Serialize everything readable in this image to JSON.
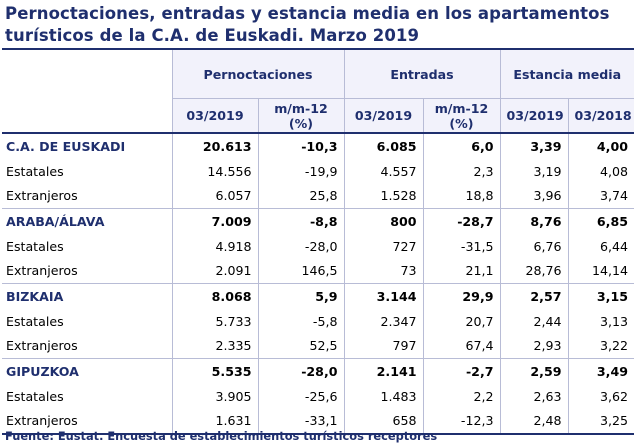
{
  "title": {
    "line1": "Pernoctaciones, entradas y estancia media en los apartamentos",
    "line2": "turísticos de la C.A. de Euskadi. Marzo 2019"
  },
  "header": {
    "groups": [
      "Pernoctaciones",
      "Entradas",
      "Estancia media"
    ],
    "subcols": {
      "pern_period": "03/2019",
      "pern_var_l1": "m/m-12",
      "pern_var_l2": "(%)",
      "ent_period": "03/2019",
      "ent_var_l1": "m/m-12",
      "ent_var_l2": "(%)",
      "est_p1": "03/2019",
      "est_p2": "03/2018"
    }
  },
  "rows": [
    {
      "label": "C.A. DE EUSKADI",
      "region": true,
      "v": [
        "20.613",
        "-10,3",
        "6.085",
        "6,0",
        "3,39",
        "4,00"
      ]
    },
    {
      "label": "Estatales",
      "region": false,
      "v": [
        "14.556",
        "-19,9",
        "4.557",
        "2,3",
        "3,19",
        "4,08"
      ]
    },
    {
      "label": "Extranjeros",
      "region": false,
      "v": [
        "6.057",
        "25,8",
        "1.528",
        "18,8",
        "3,96",
        "3,74"
      ]
    },
    {
      "label": "ARABA/ÁLAVA",
      "region": true,
      "v": [
        "7.009",
        "-8,8",
        "800",
        "-28,7",
        "8,76",
        "6,85"
      ]
    },
    {
      "label": "Estatales",
      "region": false,
      "v": [
        "4.918",
        "-28,0",
        "727",
        "-31,5",
        "6,76",
        "6,44"
      ]
    },
    {
      "label": "Extranjeros",
      "region": false,
      "v": [
        "2.091",
        "146,5",
        "73",
        "21,1",
        "28,76",
        "14,14"
      ]
    },
    {
      "label": "BIZKAIA",
      "region": true,
      "v": [
        "8.068",
        "5,9",
        "3.144",
        "29,9",
        "2,57",
        "3,15"
      ]
    },
    {
      "label": "Estatales",
      "region": false,
      "v": [
        "5.733",
        "-5,8",
        "2.347",
        "20,7",
        "2,44",
        "3,13"
      ]
    },
    {
      "label": "Extranjeros",
      "region": false,
      "v": [
        "2.335",
        "52,5",
        "797",
        "67,4",
        "2,93",
        "3,22"
      ]
    },
    {
      "label": "GIPUZKOA",
      "region": true,
      "v": [
        "5.535",
        "-28,0",
        "2.141",
        "-2,7",
        "2,59",
        "3,49"
      ]
    },
    {
      "label": "Estatales",
      "region": false,
      "v": [
        "3.905",
        "-25,6",
        "1.483",
        "2,2",
        "2,63",
        "3,62"
      ]
    },
    {
      "label": "Extranjeros",
      "region": false,
      "v": [
        "1.631",
        "-33,1",
        "658",
        "-12,3",
        "2,48",
        "3,25"
      ]
    }
  ],
  "source": "Fuente: Eustat. Encuesta de establecimientos turísticos receptores"
}
